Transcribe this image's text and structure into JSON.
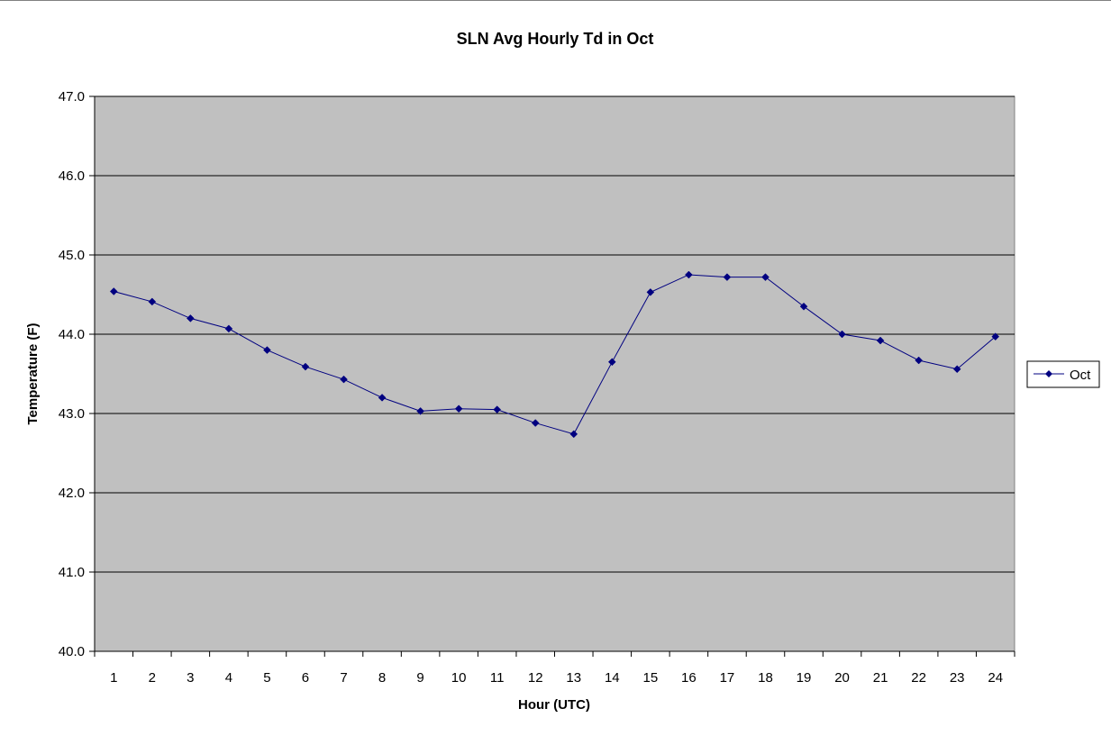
{
  "chart_data": {
    "type": "line",
    "title": "SLN Avg Hourly Td in Oct",
    "xlabel": "Hour (UTC)",
    "ylabel": "Temperature (F)",
    "categories": [
      "1",
      "2",
      "3",
      "4",
      "5",
      "6",
      "7",
      "8",
      "9",
      "10",
      "11",
      "12",
      "13",
      "14",
      "15",
      "16",
      "17",
      "18",
      "19",
      "20",
      "21",
      "22",
      "23",
      "24"
    ],
    "ylim": [
      40.0,
      47.0
    ],
    "yticks": [
      "40.0",
      "41.0",
      "42.0",
      "43.0",
      "44.0",
      "45.0",
      "46.0",
      "47.0"
    ],
    "grid": true,
    "legend_position": "right",
    "series": [
      {
        "name": "Oct",
        "color": "#000080",
        "marker": "diamond",
        "values": [
          44.54,
          44.41,
          44.2,
          44.07,
          43.8,
          43.59,
          43.43,
          43.2,
          43.03,
          43.06,
          43.05,
          42.88,
          42.74,
          43.65,
          44.53,
          44.75,
          44.72,
          44.72,
          44.35,
          44.0,
          43.92,
          43.67,
          43.56,
          43.97
        ]
      }
    ],
    "plot_background": "#c0c0c0",
    "gridline_color": "#000000"
  }
}
